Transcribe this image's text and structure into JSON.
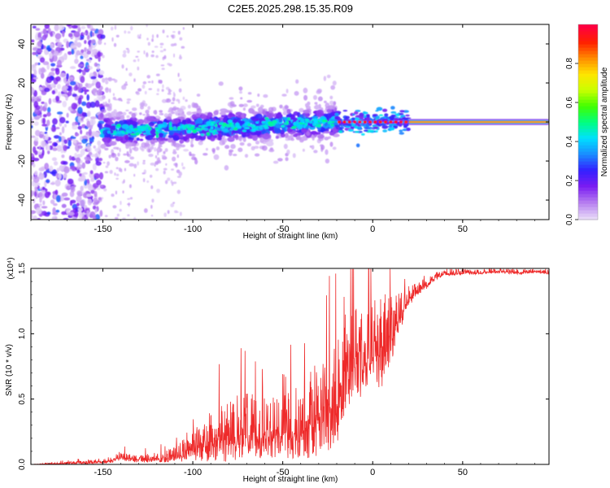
{
  "chart_data": [
    {
      "type": "heatmap",
      "title": "C2E5.2025.298.15.35.R09",
      "xlabel": "Height of straight line (km)",
      "ylabel": "Frequency (Hz)",
      "xlim": [
        -190,
        98
      ],
      "ylim": [
        -50,
        50
      ],
      "xticks": [
        -150,
        -100,
        -50,
        0,
        50
      ],
      "xtick_labels": [
        "-150",
        "-100",
        "-50",
        "0",
        "50"
      ],
      "yticks": [
        -40,
        -20,
        0,
        20,
        40
      ],
      "ytick_labels": [
        "-40",
        "-20",
        "0",
        "20",
        "40"
      ],
      "colorbar": {
        "label": "Normalized spectral amplitude",
        "range": [
          0,
          1
        ],
        "ticks": [
          0.0,
          0.2,
          0.4,
          0.6,
          0.8
        ],
        "tick_labels": [
          "0.0",
          "0.2",
          "0.4",
          "0.6",
          "0.8"
        ],
        "colors": [
          "#e6d8f8",
          "#b57cf0",
          "#7a1cf2",
          "#3320ff",
          "#1a8cff",
          "#00e0ff",
          "#00ff80",
          "#40ff00",
          "#c8ff00",
          "#ffe600",
          "#ff8c00",
          "#ff2000",
          "#ff0040"
        ]
      },
      "segments": [
        {
          "x_range": [
            -190,
            -150
          ],
          "description_values": {
            "freq_center": 0,
            "freq_spread": 50,
            "amplitude": 0.15
          }
        },
        {
          "x_range": [
            -150,
            -20
          ],
          "description_values": {
            "freq_center_start": -5,
            "freq_center_end": 0,
            "freq_spread": 6,
            "amplitude": 0.35
          }
        },
        {
          "x_range": [
            -20,
            20
          ],
          "description_values": {
            "freq_center": 0,
            "freq_spread": 3,
            "amplitude": 0.5
          }
        },
        {
          "x_range": [
            20,
            98
          ],
          "description_values": {
            "freq_center": 0,
            "freq_spread": 1,
            "amplitude": 0.95
          }
        }
      ]
    },
    {
      "type": "line",
      "xlabel": "Height of straight line (km)",
      "ylabel": "SNR (10 * v/v)",
      "y_multiplier": "(x10⁴)",
      "xlim": [
        -190,
        98
      ],
      "ylim": [
        0,
        1.5
      ],
      "xticks": [
        -150,
        -100,
        -50,
        0,
        50
      ],
      "xtick_labels": [
        "-150",
        "-100",
        "-50",
        "0",
        "50"
      ],
      "yticks": [
        0.0,
        0.5,
        1.0,
        1.5
      ],
      "ytick_labels": [
        "0.0",
        "0.5",
        "1.0",
        "1.5"
      ],
      "color": "#ee2a2a",
      "series": [
        {
          "name": "SNR",
          "x": [
            -190,
            -170,
            -150,
            -140,
            -130,
            -120,
            -110,
            -100,
            -90,
            -80,
            -70,
            -60,
            -50,
            -40,
            -30,
            -20,
            -15,
            -10,
            -5,
            0,
            5,
            10,
            15,
            20,
            25,
            30,
            35,
            40,
            50,
            60,
            70,
            80,
            90,
            98
          ],
          "y": [
            0.0,
            0.01,
            0.02,
            0.06,
            0.04,
            0.05,
            0.07,
            0.14,
            0.2,
            0.25,
            0.28,
            0.27,
            0.26,
            0.31,
            0.4,
            0.55,
            0.75,
            0.88,
            0.82,
            0.95,
            0.9,
            1.0,
            1.15,
            1.28,
            1.33,
            1.38,
            1.44,
            1.46,
            1.47,
            1.47,
            1.48,
            1.47,
            1.48,
            1.47
          ],
          "noise": [
            0.0,
            0.01,
            0.02,
            0.04,
            0.03,
            0.04,
            0.06,
            0.12,
            0.2,
            0.26,
            0.26,
            0.24,
            0.25,
            0.3,
            0.38,
            0.45,
            0.42,
            0.4,
            0.35,
            0.3,
            0.4,
            0.3,
            0.15,
            0.08,
            0.06,
            0.05,
            0.03,
            0.02,
            0.02,
            0.02,
            0.02,
            0.02,
            0.02,
            0.02
          ]
        }
      ]
    }
  ]
}
